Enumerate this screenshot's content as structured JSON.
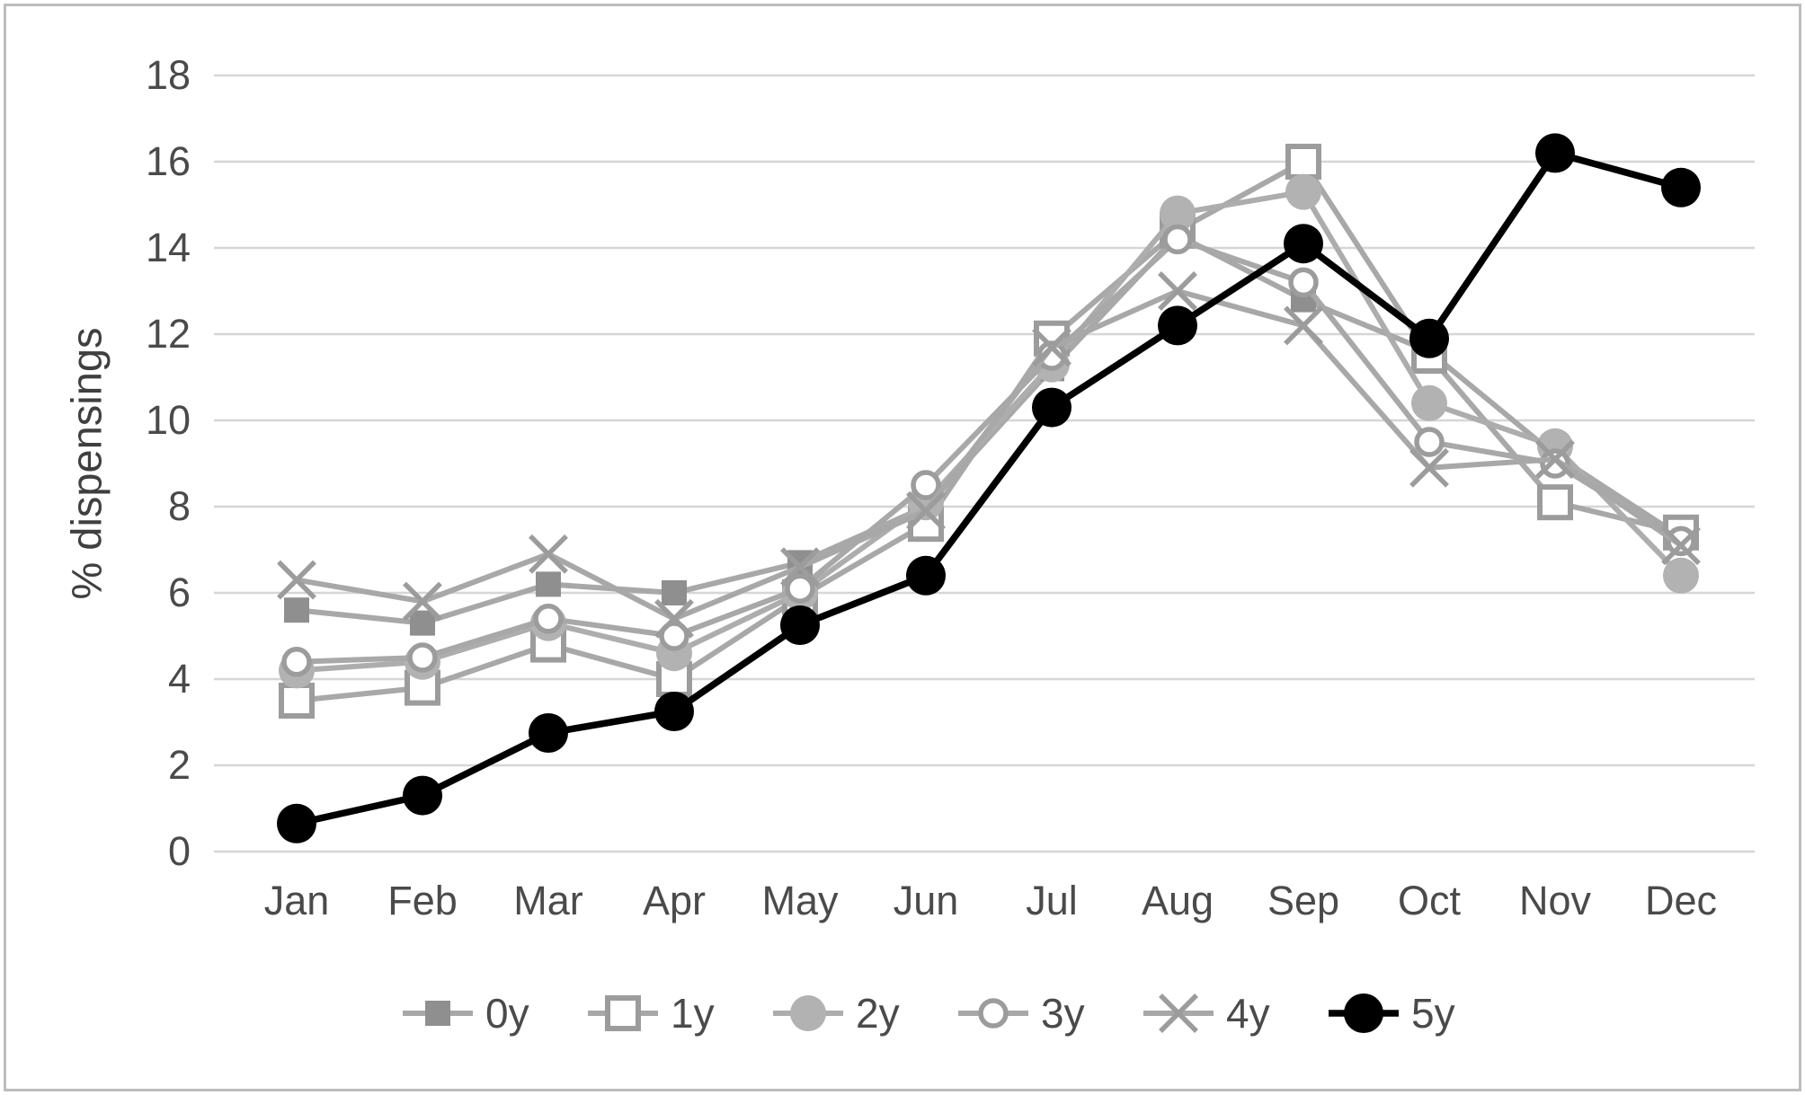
{
  "chart_data": {
    "type": "line",
    "title": "",
    "ylabel": "% dispensings",
    "xlabel": "",
    "categories": [
      "Jan",
      "Feb",
      "Mar",
      "Apr",
      "May",
      "Jun",
      "Jul",
      "Aug",
      "Sep",
      "Oct",
      "Nov",
      "Dec"
    ],
    "yticks": [
      0,
      2,
      4,
      6,
      8,
      10,
      12,
      14,
      16,
      18
    ],
    "ylim": [
      0,
      18
    ],
    "grid": "horizontal-only",
    "legend_position": "bottom",
    "colors": {
      "gridline": "#d6d6d6",
      "tick_label": "#4a4a4a",
      "axis_title": "#3f3f3f",
      "gray_series": "#a8a8a8",
      "black_series": "#000000"
    },
    "series": [
      {
        "name": "0y",
        "marker": "filled-square",
        "line_color": "#a8a8a8",
        "marker_color": "#8f8f8f",
        "values": [
          5.6,
          5.3,
          6.2,
          6.0,
          6.7,
          8.0,
          11.2,
          14.3,
          12.8,
          11.6,
          9.2,
          7.3
        ]
      },
      {
        "name": "1y",
        "marker": "open-square",
        "line_color": "#a8a8a8",
        "marker_color": "#9c9c9c",
        "values": [
          3.5,
          3.8,
          4.8,
          4.0,
          5.9,
          7.6,
          11.9,
          14.4,
          16.0,
          11.5,
          8.1,
          7.4
        ]
      },
      {
        "name": "2y",
        "marker": "filled-circle",
        "line_color": "#adadad",
        "marker_color": "#b2b2b2",
        "values": [
          4.2,
          4.4,
          5.3,
          4.6,
          6.0,
          8.1,
          11.3,
          14.8,
          15.3,
          10.4,
          9.4,
          6.4
        ]
      },
      {
        "name": "3y",
        "marker": "open-circle",
        "line_color": "#a8a8a8",
        "marker_color": "#9c9c9c",
        "values": [
          4.4,
          4.5,
          5.4,
          5.0,
          6.1,
          8.5,
          11.5,
          14.2,
          13.2,
          9.5,
          9.0,
          7.2
        ]
      },
      {
        "name": "4y",
        "marker": "x",
        "line_color": "#a8a8a8",
        "marker_color": "#9c9c9c",
        "values": [
          6.3,
          5.8,
          6.9,
          5.4,
          6.6,
          7.9,
          11.7,
          13.0,
          12.2,
          8.9,
          9.1,
          7.1
        ]
      },
      {
        "name": "5y",
        "marker": "filled-circle",
        "line_color": "#000000",
        "marker_color": "#000000",
        "values": [
          0.65,
          1.3,
          2.75,
          3.25,
          5.25,
          6.4,
          10.3,
          12.2,
          14.1,
          11.9,
          16.2,
          15.4
        ]
      }
    ]
  }
}
